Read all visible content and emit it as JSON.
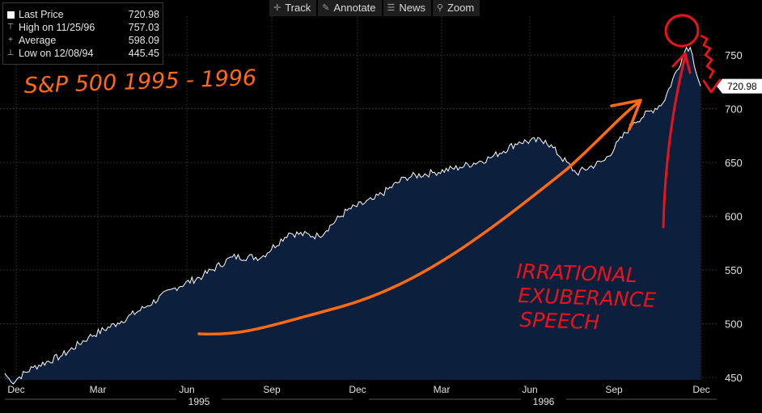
{
  "toolbar": {
    "track_label": "Track",
    "annotate_label": "Annotate",
    "news_label": "News",
    "zoom_label": "Zoom"
  },
  "legend": {
    "last_price_label": "Last Price",
    "last_price_value": "720.98",
    "high_label": "High on 11/25/96",
    "high_value": "757.03",
    "average_label": "Average",
    "average_value": "598.09",
    "low_label": "Low on 12/08/94",
    "low_value": "445.45"
  },
  "annotations": {
    "handwritten_title": "S&P 500   1995 - 1996",
    "handwritten_note_lines": [
      "IRRATIONAL",
      "EXUBERANCE",
      "SPEECH"
    ]
  },
  "colors": {
    "background": "#000000",
    "area_fill": "#0c1f3c",
    "price_line": "#ffffff",
    "gridline": "#2c2c2c",
    "orange_ink": "#ff6a13",
    "red_ink": "#e8141c",
    "last_price_tag_bg": "#ffffff"
  },
  "chart_data": {
    "type": "area",
    "series": [
      {
        "name": "Last Price",
        "x": [
          "1994-12-01",
          "1994-12-08",
          "1994-12-31",
          "1995-01-31",
          "1995-02-28",
          "1995-03-31",
          "1995-04-28",
          "1995-05-31",
          "1995-06-30",
          "1995-07-31",
          "1995-08-31",
          "1995-09-29",
          "1995-10-31",
          "1995-11-30",
          "1995-12-29",
          "1996-01-31",
          "1996-02-29",
          "1996-03-29",
          "1996-04-30",
          "1996-05-31",
          "1996-06-28",
          "1996-07-31",
          "1996-08-30",
          "1996-09-30",
          "1996-10-31",
          "1996-11-25",
          "1996-11-29",
          "1996-12-10"
        ],
        "values": [
          453.7,
          445.45,
          459.27,
          470.42,
          487.39,
          500.71,
          514.71,
          533.4,
          544.75,
          562.06,
          561.88,
          584.41,
          581.5,
          605.37,
          615.93,
          636.02,
          640.43,
          645.5,
          654.17,
          669.12,
          670.63,
          639.95,
          651.99,
          687.33,
          705.27,
          757.03,
          757.02,
          720.98
        ]
      }
    ],
    "x_tick_labels": [
      "Dec",
      "Mar",
      "Jun",
      "Sep",
      "Dec",
      "Mar",
      "Jun",
      "Sep",
      "Dec"
    ],
    "x_year_labels": [
      "1995",
      "1996"
    ],
    "y_tick_labels": [
      "450",
      "500",
      "550",
      "600",
      "650",
      "700",
      "750"
    ],
    "ylim": [
      420,
      775
    ],
    "yaxis_side": "right",
    "last_value_tag": "720.98",
    "grid": true,
    "legend_position": "top-left"
  }
}
